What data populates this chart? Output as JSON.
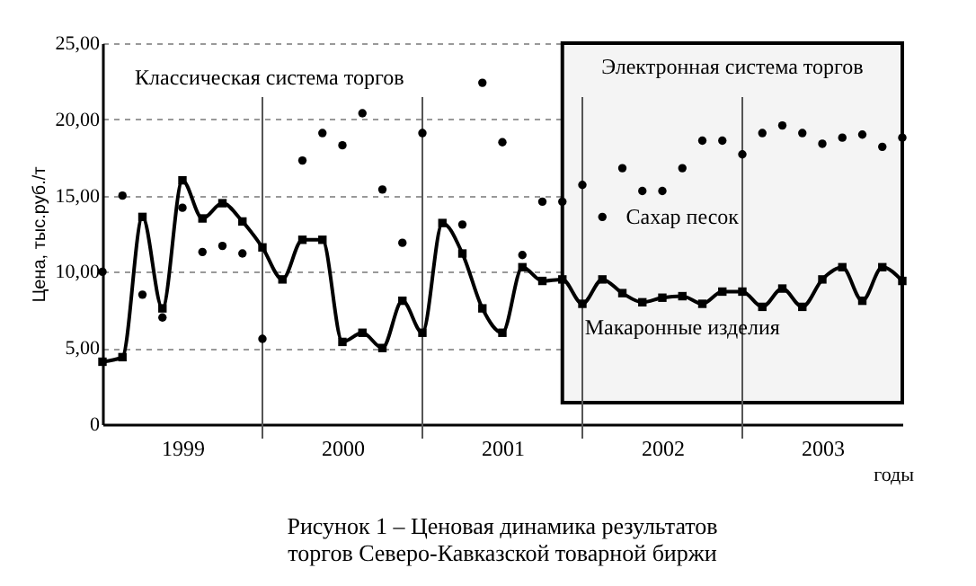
{
  "chart_data": {
    "type": "line",
    "title": "Рисунок 1 – Ценовая динамика результатов торгов Северо-Кавказской товарной биржи",
    "ylabel": "Цена, тыс.руб./т",
    "xlabel": "годы",
    "annotations": [
      "Классическая система торгов"
    ],
    "x": [
      1999,
      1999.125,
      1999.25,
      1999.375,
      1999.5,
      1999.625,
      1999.75,
      1999.875,
      2000,
      2000.125,
      2000.25,
      2000.375,
      2000.5,
      2000.625,
      2000.75,
      2000.875,
      2001,
      2001.125,
      2001.25,
      2001.375,
      2001.5,
      2001.625,
      2001.75,
      2001.875,
      2002,
      2002.125,
      2002.25,
      2002.375,
      2002.5,
      2002.625,
      2002.75,
      2002.875,
      2003,
      2003.125,
      2003.25,
      2003.375,
      2003.5,
      2003.625,
      2003.75,
      2003.875,
      2004
    ],
    "series": [
      {
        "name": "Сахар песок",
        "type": "scatter",
        "marker": "circle",
        "color": "#000000",
        "values": [
          10.0,
          15.0,
          8.5,
          7.0,
          14.2,
          11.3,
          11.7,
          11.2,
          5.6,
          null,
          17.3,
          19.1,
          18.3,
          20.4,
          15.4,
          11.9,
          19.1,
          null,
          13.1,
          22.4,
          18.5,
          11.1,
          14.6,
          14.6,
          15.7,
          13.6,
          16.8,
          15.3,
          15.3,
          16.8,
          18.6,
          18.6,
          17.7,
          19.1,
          19.6,
          19.1,
          18.4,
          18.8,
          19.0,
          18.2,
          18.8
        ]
      },
      {
        "name": "Макаронные изделия",
        "marker": "square",
        "line_style": "solid",
        "color": "#000000",
        "values": [
          4.1,
          4.4,
          13.6,
          7.6,
          16.0,
          13.5,
          14.5,
          13.3,
          11.6,
          9.5,
          12.1,
          12.1,
          5.4,
          6.0,
          5.0,
          8.1,
          6.0,
          13.2,
          11.2,
          7.6,
          6.0,
          10.3,
          9.4,
          9.5,
          7.9,
          9.5,
          8.6,
          8.0,
          8.3,
          8.4,
          7.9,
          8.7,
          8.7,
          7.7,
          8.9,
          7.7,
          9.5,
          10.3,
          8.1,
          10.3,
          9.4
        ]
      }
    ],
    "xlim": [
      1999,
      2004
    ],
    "xticks": [
      {
        "value": 1999.5,
        "label": "1999"
      },
      {
        "value": 2000.5,
        "label": "2000"
      },
      {
        "value": 2001.5,
        "label": "2001"
      },
      {
        "value": 2002.5,
        "label": "2002"
      },
      {
        "value": 2003.5,
        "label": "2003"
      }
    ],
    "ylim": [
      0,
      25
    ],
    "yticks": [
      {
        "value": 0,
        "label": "0"
      },
      {
        "value": 5,
        "label": "5,00"
      },
      {
        "value": 10,
        "label": "10,00"
      },
      {
        "value": 15,
        "label": "15,00"
      },
      {
        "value": 20,
        "label": "20,00"
      },
      {
        "value": 25,
        "label": "25,00"
      }
    ],
    "ref_lines": [
      {
        "axis": "x",
        "value": 2000
      },
      {
        "axis": "x",
        "value": 2001
      },
      {
        "axis": "x",
        "value": 2002
      },
      {
        "axis": "x",
        "value": 2003
      }
    ],
    "bands": [
      {
        "axis": "x",
        "from": 2001.875,
        "to": 2004,
        "label": "Электронная система торгов",
        "color": "#f4f4f4"
      }
    ],
    "grid": "y"
  }
}
